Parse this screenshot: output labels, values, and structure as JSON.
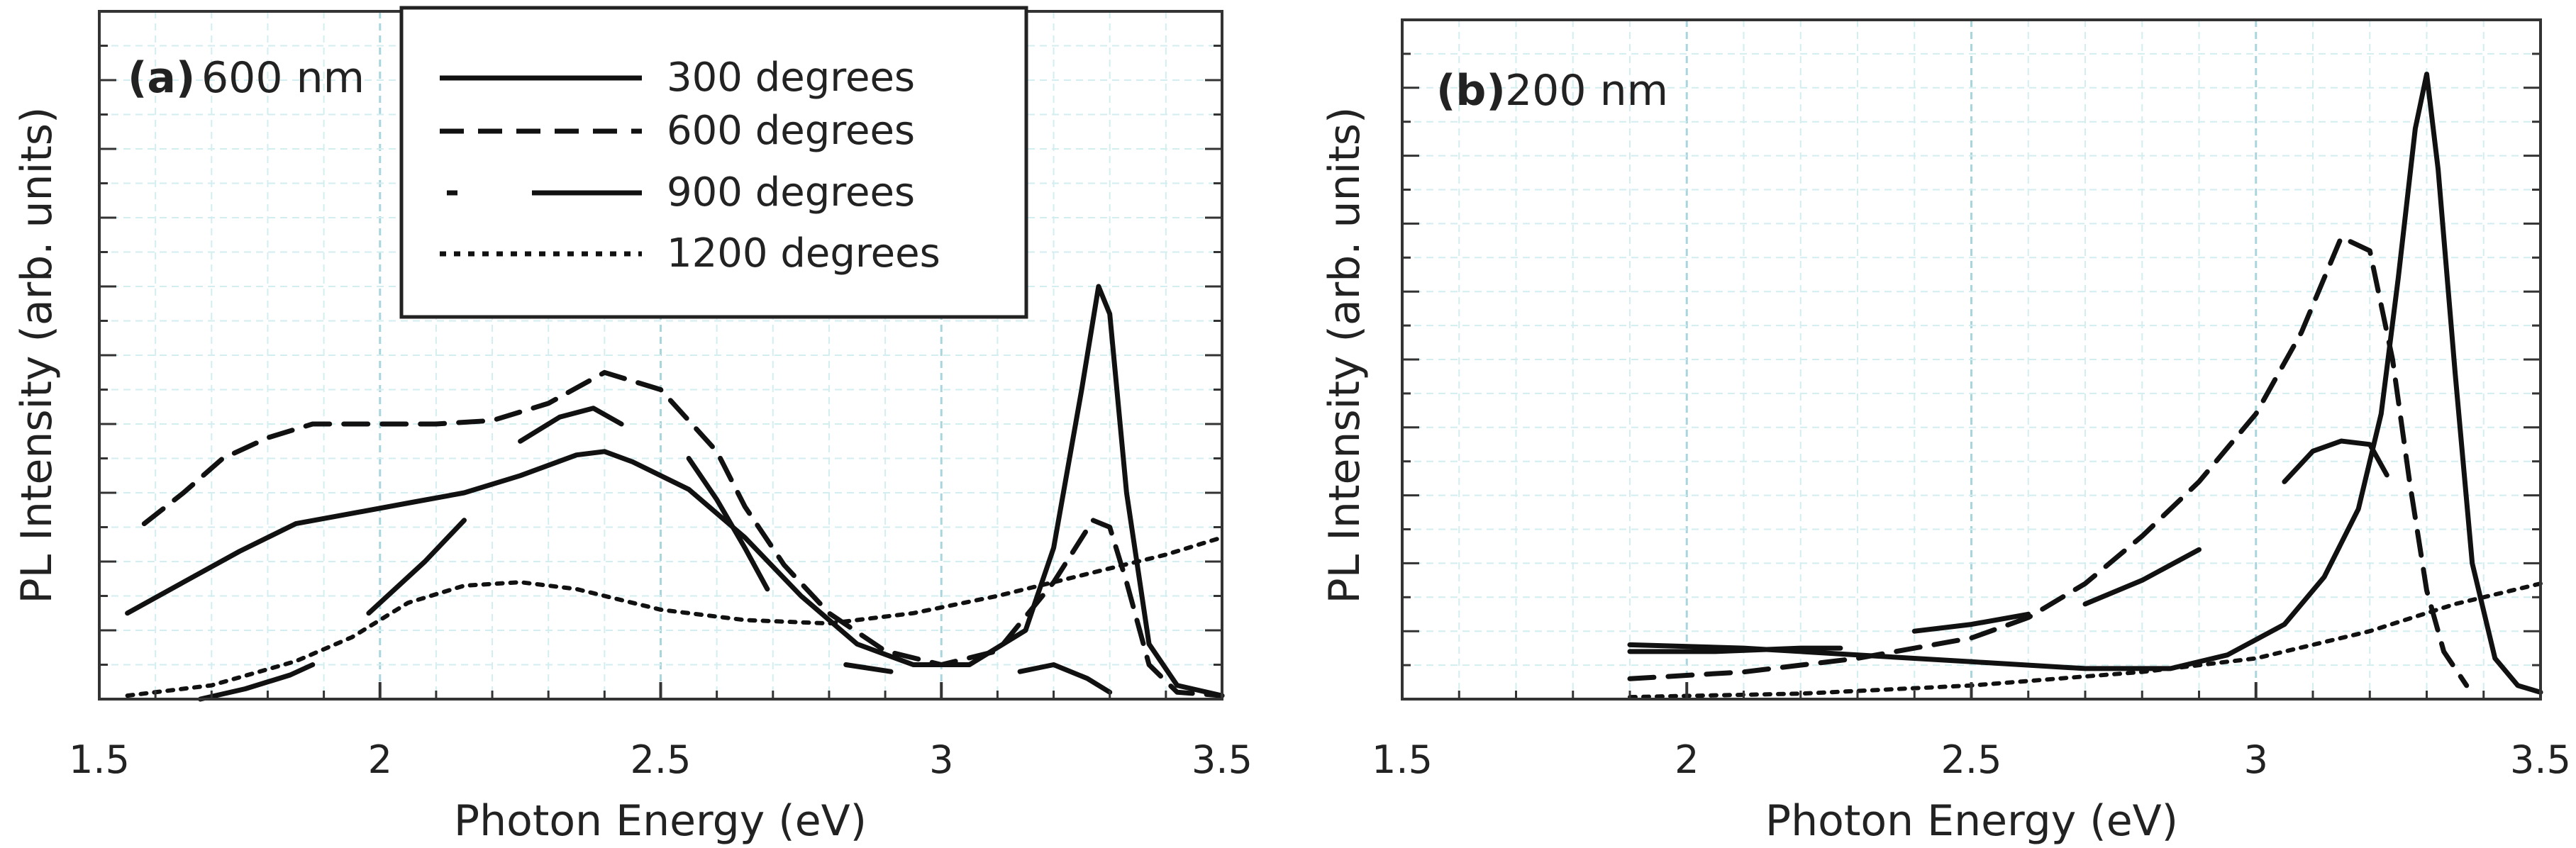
{
  "chart_data": [
    {
      "type": "line",
      "panel_tag": "(a)",
      "panel_text": "600 nm",
      "xlabel": "Photon Energy (eV)",
      "ylabel": "PL Intensity (arb. units)",
      "xlim": [
        1.5,
        3.5
      ],
      "ylim": [
        0,
        100
      ],
      "x_ticks": [
        1.5,
        2,
        2.5,
        3,
        3.5
      ],
      "x_tick_labels": [
        "1.5",
        "2",
        "2.5",
        "3",
        "3.5"
      ],
      "grid": true,
      "legend": {
        "position": "top",
        "entries": [
          "300 degrees",
          "600 degrees",
          "900 degrees",
          "1200 degrees"
        ]
      },
      "series": [
        {
          "name": "300 degrees",
          "style": "solid",
          "points": [
            [
              1.55,
              12.5
            ],
            [
              1.65,
              17
            ],
            [
              1.75,
              21.5
            ],
            [
              1.85,
              25.5
            ],
            [
              1.95,
              27
            ],
            [
              2.05,
              28.5
            ],
            [
              2.15,
              30
            ],
            [
              2.25,
              32.5
            ],
            [
              2.35,
              35.5
            ],
            [
              2.4,
              36
            ],
            [
              2.45,
              34.5
            ],
            [
              2.55,
              30.5
            ],
            [
              2.65,
              23.5
            ],
            [
              2.75,
              15
            ],
            [
              2.85,
              8
            ],
            [
              2.95,
              5
            ],
            [
              3.05,
              5
            ],
            [
              3.15,
              10
            ],
            [
              3.2,
              22
            ],
            [
              3.25,
              45
            ],
            [
              3.28,
              60
            ],
            [
              3.3,
              56
            ],
            [
              3.33,
              30
            ],
            [
              3.37,
              8
            ],
            [
              3.42,
              2
            ],
            [
              3.5,
              0.5
            ]
          ]
        },
        {
          "name": "600 degrees",
          "style": "dashed",
          "points": [
            [
              1.58,
              25.5
            ],
            [
              1.65,
              30
            ],
            [
              1.72,
              35
            ],
            [
              1.8,
              38
            ],
            [
              1.88,
              40
            ],
            [
              2.0,
              40
            ],
            [
              2.1,
              40
            ],
            [
              2.2,
              40.5
            ],
            [
              2.3,
              43
            ],
            [
              2.4,
              47.5
            ],
            [
              2.5,
              45
            ],
            [
              2.6,
              36
            ],
            [
              2.65,
              28
            ],
            [
              2.72,
              19.5
            ],
            [
              2.8,
              12.5
            ],
            [
              2.9,
              7
            ],
            [
              3.0,
              5
            ],
            [
              3.1,
              7
            ],
            [
              3.2,
              17
            ],
            [
              3.27,
              26
            ],
            [
              3.3,
              25
            ],
            [
              3.33,
              17
            ],
            [
              3.37,
              5
            ],
            [
              3.42,
              1
            ],
            [
              3.5,
              0.5
            ]
          ]
        },
        {
          "name": "900 degrees",
          "style": "long-dash",
          "points": [
            [
              1.68,
              0
            ],
            [
              1.76,
              1.5
            ],
            [
              1.84,
              3.5
            ],
            [
              1.88,
              5
            ],
            [
              null,
              null
            ],
            [
              1.98,
              12.5
            ],
            [
              2.08,
              20
            ],
            [
              2.15,
              26
            ],
            [
              null,
              null
            ],
            [
              2.25,
              37.5
            ],
            [
              2.32,
              41
            ],
            [
              2.38,
              42.3
            ],
            [
              2.43,
              40
            ],
            [
              null,
              null
            ],
            [
              2.55,
              35
            ],
            [
              2.6,
              29
            ],
            [
              2.65,
              22
            ],
            [
              2.69,
              16
            ],
            [
              null,
              null
            ],
            [
              2.83,
              5
            ],
            [
              2.91,
              4
            ],
            [
              null,
              null
            ],
            [
              3.14,
              4
            ],
            [
              3.2,
              5
            ],
            [
              3.26,
              3
            ],
            [
              3.3,
              1
            ]
          ]
        },
        {
          "name": "1200 degrees",
          "style": "dotted",
          "points": [
            [
              1.55,
              0.5
            ],
            [
              1.7,
              2
            ],
            [
              1.85,
              5.5
            ],
            [
              1.95,
              9
            ],
            [
              2.05,
              14
            ],
            [
              2.15,
              16.5
            ],
            [
              2.25,
              17
            ],
            [
              2.35,
              16
            ],
            [
              2.5,
              13
            ],
            [
              2.65,
              11.5
            ],
            [
              2.8,
              11
            ],
            [
              2.95,
              12.5
            ],
            [
              3.1,
              15
            ],
            [
              3.25,
              18
            ],
            [
              3.4,
              21
            ],
            [
              3.5,
              23.5
            ]
          ]
        }
      ]
    },
    {
      "type": "line",
      "panel_tag": "(b)",
      "panel_text": "200 nm",
      "xlabel": "Photon Energy (eV)",
      "ylabel": "PL Intensity (arb. units)",
      "xlim": [
        1.5,
        3.5
      ],
      "ylim": [
        0,
        100
      ],
      "x_ticks": [
        1.5,
        2,
        2.5,
        3,
        3.5
      ],
      "x_tick_labels": [
        "1.5",
        "2",
        "2.5",
        "3",
        "3.5"
      ],
      "grid": true,
      "series": [
        {
          "name": "300 degrees",
          "style": "solid",
          "points": [
            [
              1.9,
              8
            ],
            [
              2.1,
              7.5
            ],
            [
              2.3,
              6.5
            ],
            [
              2.5,
              5.5
            ],
            [
              2.7,
              4.5
            ],
            [
              2.85,
              4.5
            ],
            [
              2.95,
              6.5
            ],
            [
              3.05,
              11
            ],
            [
              3.12,
              18
            ],
            [
              3.18,
              28
            ],
            [
              3.22,
              42
            ],
            [
              3.25,
              62
            ],
            [
              3.28,
              84
            ],
            [
              3.3,
              92
            ],
            [
              3.32,
              78
            ],
            [
              3.35,
              48
            ],
            [
              3.38,
              20
            ],
            [
              3.42,
              6
            ],
            [
              3.46,
              2
            ],
            [
              3.5,
              1
            ]
          ]
        },
        {
          "name": "600 degrees",
          "style": "dashed",
          "points": [
            [
              1.9,
              3
            ],
            [
              2.1,
              4
            ],
            [
              2.3,
              6
            ],
            [
              2.5,
              9
            ],
            [
              2.6,
              12
            ],
            [
              2.7,
              17
            ],
            [
              2.8,
              24
            ],
            [
              2.9,
              32
            ],
            [
              3.0,
              42
            ],
            [
              3.08,
              54
            ],
            [
              3.15,
              68
            ],
            [
              3.2,
              66
            ],
            [
              3.24,
              50
            ],
            [
              3.27,
              32
            ],
            [
              3.3,
              16
            ],
            [
              3.33,
              7
            ],
            [
              3.37,
              2
            ]
          ]
        },
        {
          "name": "900 degrees",
          "style": "long-dash",
          "points": [
            [
              1.9,
              7
            ],
            [
              2.05,
              7
            ],
            [
              2.2,
              7.5
            ],
            [
              2.27,
              7.5
            ],
            [
              null,
              null
            ],
            [
              2.4,
              10
            ],
            [
              2.5,
              11
            ],
            [
              2.6,
              12.5
            ],
            [
              null,
              null
            ],
            [
              2.7,
              14
            ],
            [
              2.8,
              17.5
            ],
            [
              2.9,
              22
            ],
            [
              null,
              null
            ],
            [
              3.05,
              32
            ],
            [
              3.1,
              36.5
            ],
            [
              3.15,
              38
            ],
            [
              3.2,
              37.5
            ],
            [
              3.23,
              33
            ]
          ]
        },
        {
          "name": "1200 degrees",
          "style": "dotted",
          "points": [
            [
              1.9,
              0.3
            ],
            [
              2.2,
              0.8
            ],
            [
              2.5,
              2
            ],
            [
              2.8,
              4
            ],
            [
              3.0,
              6
            ],
            [
              3.2,
              10
            ],
            [
              3.35,
              14
            ],
            [
              3.5,
              17
            ]
          ]
        }
      ]
    }
  ]
}
